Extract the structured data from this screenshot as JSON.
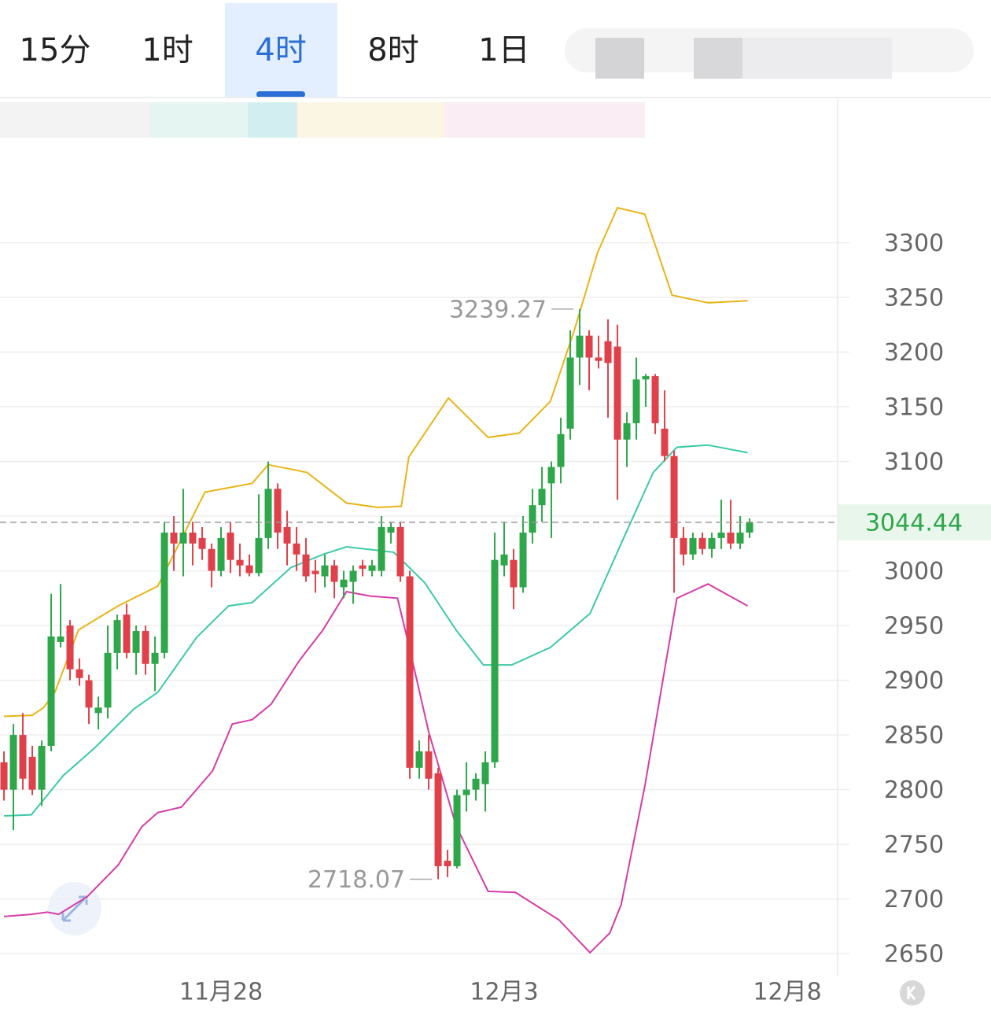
{
  "tabs": [
    "15分",
    "1时",
    "4时",
    "8时",
    "1日"
  ],
  "chart_data": {
    "type": "candlestick",
    "x": [
      0,
      1,
      2,
      3,
      4,
      5,
      6,
      7,
      8,
      9,
      10,
      11,
      12,
      13,
      14,
      15,
      16,
      17,
      18,
      19,
      20,
      21,
      22,
      23,
      24,
      25,
      26,
      27,
      28,
      29,
      30,
      31,
      32,
      33,
      34,
      35,
      36,
      37,
      38,
      39,
      40,
      41,
      42,
      43,
      44,
      45,
      46,
      47,
      48,
      49,
      50,
      51,
      52,
      53,
      54,
      55,
      56,
      57,
      58,
      59,
      60,
      61,
      62,
      63,
      64,
      65,
      66,
      67,
      68,
      69,
      70,
      71,
      72,
      73,
      74,
      75,
      76,
      77,
      78,
      79
    ],
    "open": [
      2825,
      2800,
      2850,
      2830,
      2800,
      2840,
      2935,
      2950,
      2910,
      2900,
      2870,
      2875,
      2925,
      2960,
      2925,
      2945,
      2915,
      2925,
      3035,
      3025,
      3035,
      3030,
      3020,
      3000,
      3035,
      3010,
      3005,
      2998,
      3030,
      3075,
      3040,
      3025,
      3015,
      3000,
      2995,
      3005,
      2985,
      2990,
      3005,
      3000,
      3000,
      3035,
      3040,
      2995,
      2820,
      2835,
      2815,
      2735,
      2730,
      2795,
      2800,
      2805,
      2825,
      3005,
      3010,
      2985,
      3035,
      3060,
      3080,
      3095,
      3130,
      3195,
      3215,
      3195,
      3210,
      3205,
      3120,
      3135,
      3175,
      3178,
      3130,
      3105,
      3030,
      3015,
      3030,
      3020,
      3030,
      3035,
      3025,
      3035
    ],
    "high": [
      2835,
      2860,
      2870,
      2840,
      2845,
      2979,
      2988,
      2955,
      2920,
      2905,
      2885,
      2950,
      2960,
      2970,
      2950,
      2950,
      2940,
      3045,
      3050,
      3075,
      3045,
      3040,
      3025,
      3040,
      3045,
      3025,
      3015,
      3070,
      3100,
      3080,
      3055,
      3040,
      3030,
      3010,
      3015,
      3010,
      3000,
      3005,
      3010,
      3010,
      3050,
      3045,
      3045,
      3000,
      2845,
      2850,
      2820,
      2745,
      2800,
      2825,
      2815,
      2835,
      3035,
      3045,
      3020,
      3050,
      3075,
      3095,
      3100,
      3140,
      3220,
      3239.27,
      3220,
      3215,
      3230,
      3225,
      3145,
      3195,
      3180,
      3180,
      3165,
      3110,
      3040,
      3035,
      3035,
      3035,
      3065,
      3065,
      3050,
      3048
    ],
    "low": [
      2790,
      2763,
      2800,
      2795,
      2785,
      2835,
      2930,
      2900,
      2895,
      2860,
      2855,
      2865,
      2910,
      2920,
      2905,
      2905,
      2890,
      2920,
      3000,
      2995,
      3005,
      3010,
      2985,
      2995,
      2998,
      2995,
      2995,
      2995,
      3020,
      3020,
      3005,
      3000,
      2990,
      2980,
      2985,
      2975,
      2975,
      2970,
      2995,
      2995,
      2995,
      3025,
      2990,
      2810,
      2810,
      2800,
      2718.07,
      2720,
      2728,
      2780,
      2790,
      2780,
      2820,
      2995,
      2965,
      2980,
      3025,
      3045,
      3030,
      3080,
      3120,
      3170,
      3165,
      3185,
      3140,
      3065,
      3095,
      3120,
      3150,
      3125,
      3100,
      2980,
      3005,
      3010,
      3015,
      3012,
      3020,
      3020,
      3020,
      3030
    ],
    "close": [
      2800,
      2850,
      2810,
      2800,
      2840,
      2940,
      2940,
      2910,
      2902,
      2875,
      2875,
      2925,
      2955,
      2925,
      2945,
      2915,
      2925,
      3035,
      3025,
      3035,
      3025,
      3020,
      3000,
      3030,
      3010,
      3005,
      2998,
      3030,
      3075,
      3035,
      3025,
      3015,
      2995,
      2997,
      3005,
      2990,
      2992,
      3000,
      3002,
      3005,
      3040,
      3040,
      2995,
      2820,
      2835,
      2810,
      2730,
      2730,
      2795,
      2800,
      2810,
      2825,
      3010,
      3015,
      2985,
      3035,
      3060,
      3075,
      3095,
      3125,
      3195,
      3215,
      3195,
      3192,
      3190,
      3120,
      3135,
      3175,
      3178,
      3135,
      3105,
      3030,
      3015,
      3030,
      3020,
      3030,
      3035,
      3025,
      3035,
      3044.44
    ],
    "up_color": "#2ea64a",
    "down_color": "#e0404a",
    "bands": [
      {
        "color": "#e8b416",
        "x": [
          0,
          3,
          4.2,
          5.4,
          7.9,
          12.1,
          16.3,
          21.3,
          26.3,
          28,
          32.1,
          36.3,
          39.6,
          42.1,
          42.9,
          44.6,
          47.1,
          51.3,
          54.6,
          57.9,
          60.4,
          62.9,
          65,
          67.9,
          70.8,
          74.6,
          78.8
        ],
        "values": [
          2867,
          2868,
          2875,
          2889,
          2946,
          2968,
          2986,
          3072,
          3080,
          3097,
          3090,
          3062,
          3058,
          3059,
          3104,
          3126,
          3158,
          3122,
          3126,
          3155,
          3219,
          3291,
          3332,
          3326,
          3252,
          3245,
          3247
        ]
      },
      {
        "color": "#3cc9a8",
        "x": [
          0,
          2.9,
          6.3,
          9.6,
          13.8,
          16.3,
          20.4,
          23.8,
          26.3,
          30.4,
          33.8,
          36.3,
          41.3,
          44.6,
          47.9,
          50.8,
          53.8,
          57.9,
          62.1,
          65.4,
          68.8,
          71.3,
          74.6,
          78.8
        ],
        "values": [
          2776,
          2777,
          2813,
          2838,
          2874,
          2889,
          2939,
          2968,
          2971,
          3003,
          3015,
          3022,
          3017,
          2989,
          2946,
          2914,
          2914,
          2930,
          2961,
          3025,
          3090,
          3113,
          3115,
          3108
        ]
      },
      {
        "color": "#d43ca8",
        "x": [
          0,
          2.9,
          4.6,
          5.8,
          8.8,
          12.1,
          14.6,
          16.3,
          18.8,
          22.1,
          24.2,
          26.3,
          28.3,
          31.3,
          33.8,
          36.3,
          38.8,
          41.7,
          42.9,
          45,
          47.9,
          51.3,
          54.2,
          58.8,
          62.1,
          64.2,
          65.4,
          67.9,
          71.3,
          74.6,
          78.8
        ],
        "values": [
          2684,
          2686,
          2688,
          2686,
          2702,
          2731,
          2766,
          2779,
          2784,
          2817,
          2860,
          2864,
          2878,
          2918,
          2946,
          2981,
          2977,
          2975,
          2932,
          2853,
          2767,
          2707,
          2706,
          2681,
          2651,
          2669,
          2695,
          2803,
          2975,
          2988,
          2968
        ]
      }
    ],
    "xlim": [
      -0.42,
      88.33
    ],
    "xticks": [
      {
        "value": 23,
        "label": "11月28"
      },
      {
        "value": 53,
        "label": "12月3"
      },
      {
        "value": 83,
        "label": "12月8"
      }
    ],
    "ylim": [
      2630,
      3396
    ],
    "yticks": [
      2650,
      2700,
      2750,
      2800,
      2850,
      2900,
      2950,
      3000,
      3050,
      3100,
      3150,
      3200,
      3250,
      3300
    ],
    "grid": true
  }
}
